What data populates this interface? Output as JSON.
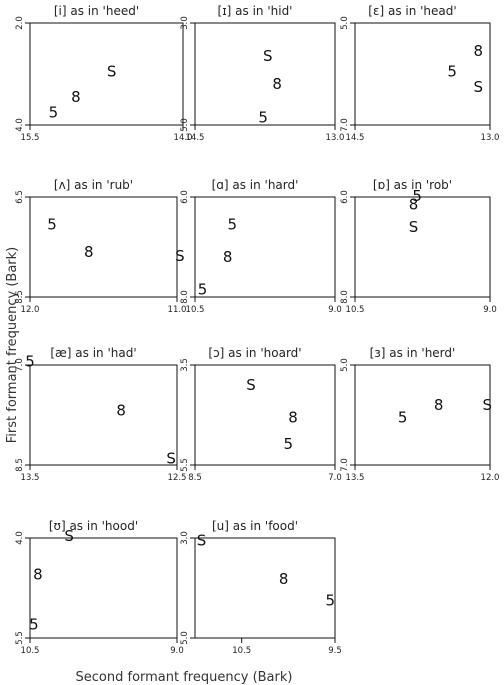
{
  "chart_data": {
    "type": "scatter",
    "xlabel": "Second formant frequency (Bark)",
    "ylabel": "First formant frequency (Bark)",
    "x_axis_reversed": true,
    "y_axis_reversed": true,
    "panels": [
      {
        "title": "[i] as in 'heed'",
        "xlim": [
          15.5,
          14.0
        ],
        "ylim": [
          2.0,
          4.0
        ],
        "xticks": [
          "15.5",
          "14.0"
        ],
        "yticks": [
          "2.0",
          "4.0"
        ],
        "points": [
          {
            "label": "S",
            "x": 14.7,
            "y": 2.95
          },
          {
            "label": "8",
            "x": 15.05,
            "y": 3.45
          },
          {
            "label": "5",
            "x": 15.27,
            "y": 3.75
          }
        ]
      },
      {
        "title": "[ɪ] as in 'hid'",
        "xlim": [
          14.5,
          13.0
        ],
        "ylim": [
          3.0,
          5.0
        ],
        "xticks": [
          "14.5",
          "13.0"
        ],
        "yticks": [
          "3.0",
          "5.0"
        ],
        "points": [
          {
            "label": "S",
            "x": 13.72,
            "y": 3.65
          },
          {
            "label": "8",
            "x": 13.62,
            "y": 4.2
          },
          {
            "label": "5",
            "x": 13.77,
            "y": 4.85
          }
        ]
      },
      {
        "title": "[ɛ] as in 'head'",
        "xlim": [
          14.5,
          13.0
        ],
        "ylim": [
          5.0,
          7.0
        ],
        "xticks": [
          "14.5",
          "13.0"
        ],
        "yticks": [
          "5.0",
          "7.0"
        ],
        "points": [
          {
            "label": "8",
            "x": 13.13,
            "y": 5.55
          },
          {
            "label": "5",
            "x": 13.42,
            "y": 5.95
          },
          {
            "label": "S",
            "x": 13.13,
            "y": 6.25
          }
        ]
      },
      {
        "title": "[ʌ] as in 'rub'",
        "xlim": [
          12.0,
          11.0
        ],
        "ylim": [
          6.5,
          8.5
        ],
        "xticks": [
          "12.0",
          "11.0"
        ],
        "yticks": [
          "6.5",
          "8.5"
        ],
        "points": [
          {
            "label": "5",
            "x": 11.85,
            "y": 7.05
          },
          {
            "label": "8",
            "x": 11.6,
            "y": 7.6
          },
          {
            "label": "S",
            "x": 10.98,
            "y": 7.68
          }
        ]
      },
      {
        "title": "[ɑ] as in 'hard'",
        "xlim": [
          10.5,
          9.0
        ],
        "ylim": [
          6.0,
          8.0
        ],
        "xticks": [
          "10.5",
          "9.0"
        ],
        "yticks": [
          "6.0",
          "8.0"
        ],
        "points": [
          {
            "label": "5",
            "x": 10.1,
            "y": 6.55
          },
          {
            "label": "8",
            "x": 10.15,
            "y": 7.2
          },
          {
            "label": "5",
            "x": 10.42,
            "y": 7.85
          }
        ]
      },
      {
        "title": "[ɒ] as in 'rob'",
        "xlim": [
          10.5,
          9.0
        ],
        "ylim": [
          6.0,
          8.0
        ],
        "xticks": [
          "10.5",
          "9.0"
        ],
        "yticks": [
          "6.0",
          "8.0"
        ],
        "points": [
          {
            "label": "5",
            "x": 9.81,
            "y": 5.98
          },
          {
            "label": "8",
            "x": 9.85,
            "y": 6.15
          },
          {
            "label": "S",
            "x": 9.85,
            "y": 6.6
          }
        ]
      },
      {
        "title": "[æ] as in 'had'",
        "xlim": [
          13.5,
          12.5
        ],
        "ylim": [
          7.0,
          8.5
        ],
        "xticks": [
          "13.5",
          "12.5"
        ],
        "yticks": [
          "7.0",
          "8.5"
        ],
        "points": [
          {
            "label": "5",
            "x": 13.5,
            "y": 6.95
          },
          {
            "label": "8",
            "x": 12.88,
            "y": 7.68
          },
          {
            "label": "S",
            "x": 12.54,
            "y": 8.4
          }
        ]
      },
      {
        "title": "[ɔ] as in 'hoard'",
        "xlim": [
          8.5,
          7.0
        ],
        "ylim": [
          3.5,
          5.5
        ],
        "xticks": [
          "8.5",
          "7.0"
        ],
        "yticks": [
          "3.5",
          "5.5"
        ],
        "points": [
          {
            "label": "S",
            "x": 7.9,
            "y": 3.9
          },
          {
            "label": "8",
            "x": 7.45,
            "y": 4.55
          },
          {
            "label": "5",
            "x": 7.5,
            "y": 5.08
          }
        ]
      },
      {
        "title": "[ɜ] as in 'herd'",
        "xlim": [
          13.5,
          12.0
        ],
        "ylim": [
          5.0,
          7.0
        ],
        "xticks": [
          "13.5",
          "12.0"
        ],
        "yticks": [
          "5.0",
          "7.0"
        ],
        "points": [
          {
            "label": "5",
            "x": 12.97,
            "y": 6.05
          },
          {
            "label": "8",
            "x": 12.57,
            "y": 5.8
          },
          {
            "label": "S",
            "x": 12.03,
            "y": 5.8
          }
        ]
      },
      {
        "title": "[ʊ] as in 'hood'",
        "xlim": [
          10.5,
          9.0
        ],
        "ylim": [
          4.0,
          5.5
        ],
        "xticks": [
          "10.5",
          "9.0"
        ],
        "yticks": [
          "4.0",
          "5.5"
        ],
        "points": [
          {
            "label": "S",
            "x": 10.1,
            "y": 3.97
          },
          {
            "label": "8",
            "x": 10.42,
            "y": 4.55
          },
          {
            "label": "5",
            "x": 10.46,
            "y": 5.3
          }
        ]
      },
      {
        "title": "[u] as in 'food'",
        "xlim": [
          11.0,
          9.5
        ],
        "ylim": [
          3.0,
          5.0
        ],
        "xticks": [
          "10.5",
          "9.5"
        ],
        "yticks": [
          "3.0",
          "5.0"
        ],
        "points": [
          {
            "label": "S",
            "x": 10.93,
            "y": 3.05
          },
          {
            "label": "8",
            "x": 10.05,
            "y": 3.82
          },
          {
            "label": "5",
            "x": 9.55,
            "y": 4.25
          }
        ]
      }
    ]
  }
}
